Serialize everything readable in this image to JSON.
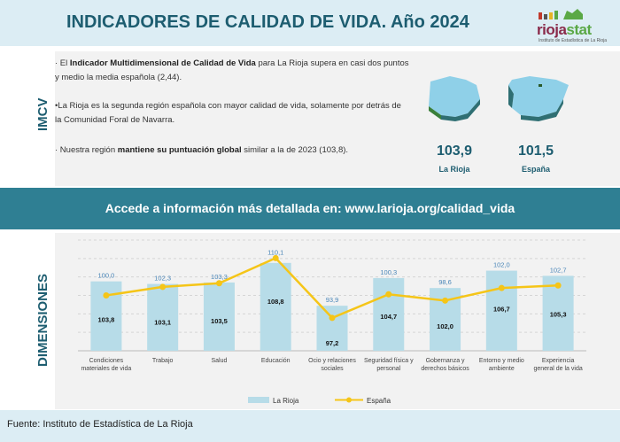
{
  "header": {
    "title": "INDICADORES DE CALIDAD DE VIDA. Año 2024",
    "logo_text_a": "rioja",
    "logo_text_b": "stat",
    "logo_sub": "Instituto de Estadística de La Rioja"
  },
  "imcv": {
    "section_label": "IMCV",
    "bullets": [
      {
        "pre": "· El ",
        "bold": "Indicador Multidimensional de Calidad de Vida",
        "post": " para La Rioja supera en casi dos puntos y medio la media española (2,44)."
      },
      {
        "pre": "•La Rioja es la segunda región española con mayor calidad de vida, solamente por detrás de la Comunidad Foral de Navarra.",
        "bold": "",
        "post": ""
      },
      {
        "pre": "·  Nuestra región ",
        "bold": "mantiene su puntuación global",
        "post": " similar a la de 2023 (103,8)."
      }
    ],
    "kpis": [
      {
        "value": "103,9",
        "label": "La Rioja"
      },
      {
        "value": "101,5",
        "label": "España"
      }
    ]
  },
  "banner": {
    "text": "Accede a información más detallada en: www.larioja.org/calidad_vida"
  },
  "dimensions": {
    "section_label": "DIMENSIONES"
  },
  "chart_data": {
    "type": "bar",
    "categories": [
      [
        "Condiciones",
        "materiales de vida"
      ],
      [
        "Trabajo"
      ],
      [
        "Salud"
      ],
      [
        "Educación"
      ],
      [
        "Ocio y relaciones",
        "sociales"
      ],
      [
        "Seguridad física y",
        "personal"
      ],
      [
        "Gobernanza y",
        "derechos básicos"
      ],
      [
        "Entorno y medio",
        "ambiente"
      ],
      [
        "Experiencia",
        "general de la vida"
      ]
    ],
    "series": [
      {
        "name": "La Rioja",
        "type": "bar",
        "color": "#b7dce8",
        "values": [
          103.8,
          103.1,
          103.5,
          108.8,
          97.2,
          104.7,
          102.0,
          106.7,
          105.3
        ],
        "labels": [
          "103,8",
          "103,1",
          "103,5",
          "108,8",
          "97,2",
          "104,7",
          "102,0",
          "106,7",
          "105,3"
        ]
      },
      {
        "name": "España",
        "type": "line",
        "color": "#f5c518",
        "values": [
          100.0,
          102.3,
          103.3,
          110.1,
          93.9,
          100.3,
          98.6,
          102.0,
          102.7
        ],
        "labels": [
          "100,0",
          "102,3",
          "103,3",
          "110,1",
          "93,9",
          "100,3",
          "98,6",
          "102,0",
          "102,7"
        ]
      }
    ],
    "ylim": [
      85,
      115
    ],
    "grid": true,
    "legend": "bottom"
  },
  "footer": {
    "text": "Fuente:  Instituto de Estadística de La Rioja"
  }
}
